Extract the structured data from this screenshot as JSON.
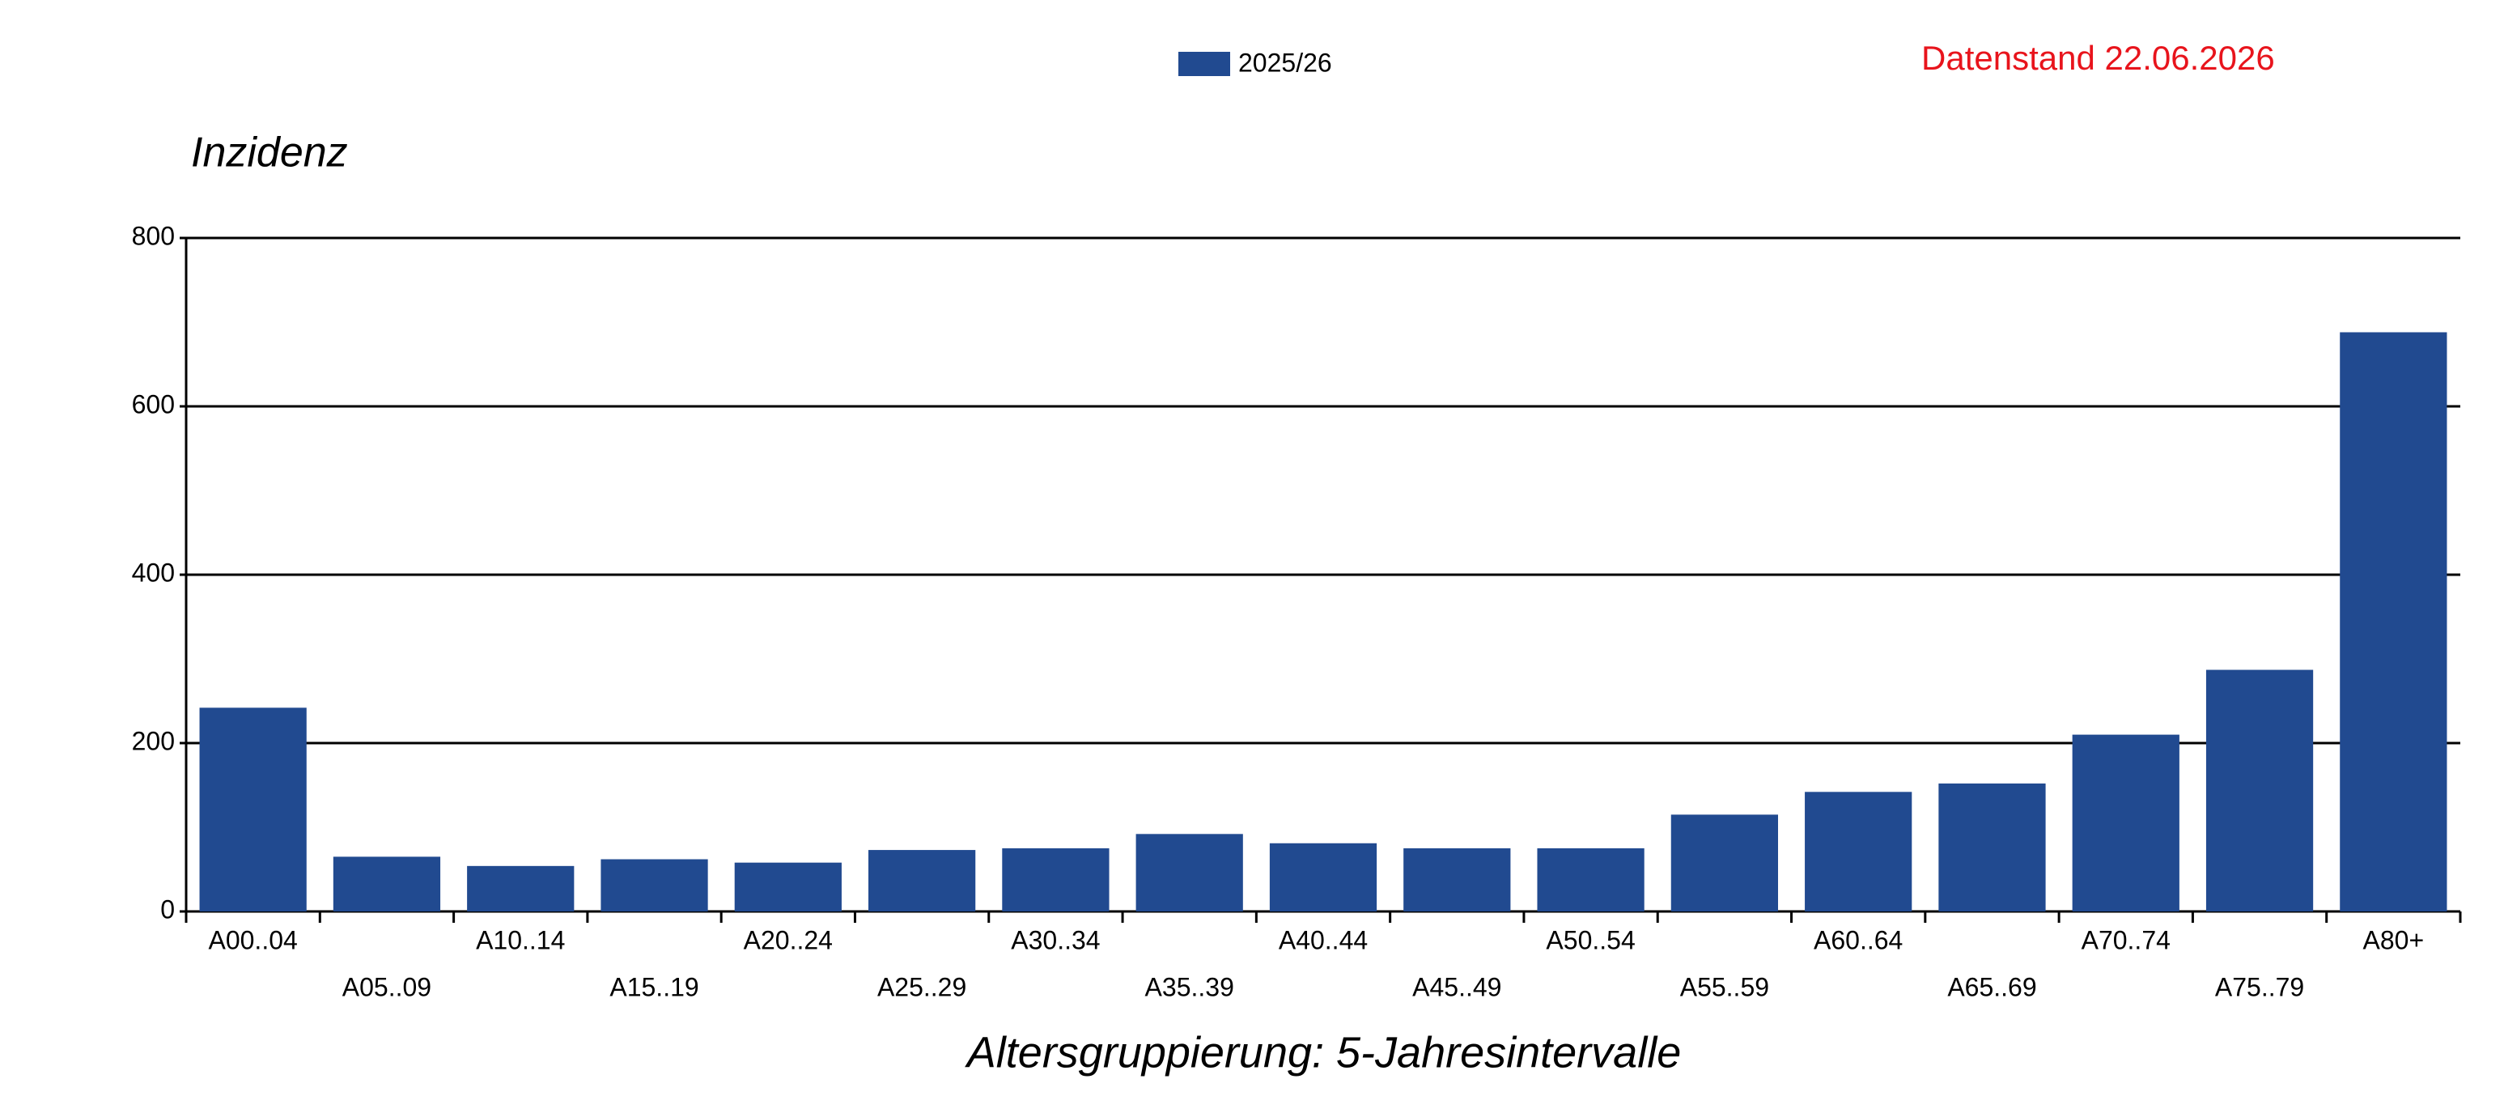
{
  "chart_data": {
    "type": "bar",
    "annotation": "Datenstand 22.06.2026",
    "y_label": "Inzidenz",
    "x_label": "Altersgruppierung: 5-Jahresintervalle",
    "categories": [
      "A00..04",
      "A05..09",
      "A10..14",
      "A15..19",
      "A20..24",
      "A25..29",
      "A30..34",
      "A35..39",
      "A40..44",
      "A45..49",
      "A50..54",
      "A55..59",
      "A60..64",
      "A65..69",
      "A70..74",
      "A75..79",
      "A80+"
    ],
    "series": [
      {
        "name": "2025/26",
        "color": "#214a90",
        "values": [
          242,
          65,
          54,
          62,
          58,
          73,
          75,
          92,
          81,
          75,
          75,
          115,
          142,
          152,
          210,
          287,
          688
        ]
      }
    ],
    "ylim": [
      0,
      800
    ],
    "yticks": [
      0,
      200,
      400,
      600,
      800
    ],
    "grid": true
  }
}
